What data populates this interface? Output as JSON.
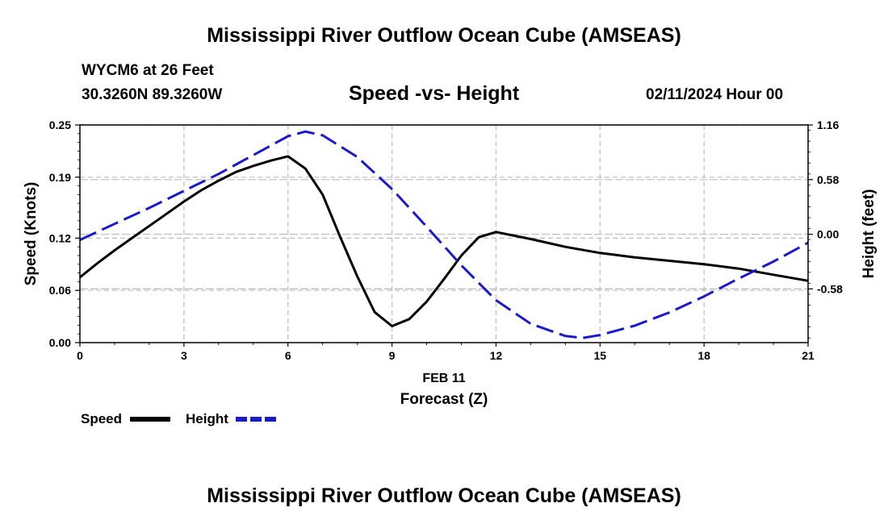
{
  "header": {
    "title": "Mississippi River Outflow Ocean Cube (AMSEAS)",
    "station": "WYCM6 at 26 Feet",
    "coords": "30.3260N  89.3260W",
    "datetime": "02/11/2024 Hour 00"
  },
  "footer": {
    "title": "Mississippi River Outflow Ocean Cube (AMSEAS)"
  },
  "colors": {
    "speed": "#000000",
    "height": "#1a1acc",
    "grid": "#bdbdbd"
  },
  "chart_data": {
    "type": "line",
    "title": "Speed -vs- Height",
    "xlabel": "Forecast (Z)",
    "x_date_label": "FEB 11",
    "ylabel": "Speed (Knots)",
    "y2label": "Height (feet)",
    "xlim": [
      0,
      21
    ],
    "ylim": [
      0,
      0.25
    ],
    "y2lim": [
      -1.15,
      1.16
    ],
    "xticks": [
      0,
      3,
      6,
      9,
      12,
      15,
      18,
      21
    ],
    "yticks": [
      0.0,
      0.06,
      0.12,
      0.19,
      0.25
    ],
    "ytick_labels": [
      "0.00",
      "0.06",
      "0.12",
      "0.19",
      "0.25"
    ],
    "y2ticks": [
      -0.58,
      0.0,
      0.58,
      1.16
    ],
    "y2tick_labels": [
      "-0.58",
      "0.00",
      "0.58",
      "1.16"
    ],
    "grid": true,
    "legend": "bottom-left",
    "series": [
      {
        "name": "Speed",
        "axis": "left",
        "style": "solid",
        "x": [
          0,
          0.5,
          1,
          1.5,
          2,
          2.5,
          3,
          3.5,
          4,
          4.5,
          5,
          5.5,
          6,
          6.5,
          7,
          7.5,
          8,
          8.5,
          9,
          9.5,
          10,
          10.5,
          11,
          11.5,
          12,
          13,
          14,
          15,
          16,
          17,
          18,
          19,
          20,
          21
        ],
        "values": [
          0.075,
          0.091,
          0.106,
          0.12,
          0.134,
          0.148,
          0.162,
          0.175,
          0.186,
          0.196,
          0.203,
          0.209,
          0.214,
          0.2,
          0.17,
          0.122,
          0.076,
          0.035,
          0.019,
          0.027,
          0.047,
          0.073,
          0.1,
          0.121,
          0.127,
          0.119,
          0.11,
          0.103,
          0.098,
          0.094,
          0.09,
          0.085,
          0.078,
          0.071
        ]
      },
      {
        "name": "Height",
        "axis": "right",
        "style": "dashed",
        "x": [
          0,
          1,
          2,
          3,
          4,
          5,
          6,
          6.5,
          7,
          8,
          9,
          10,
          11,
          12,
          13,
          14,
          14.5,
          15,
          16,
          17,
          18,
          19,
          20,
          21
        ],
        "values": [
          -0.06,
          0.11,
          0.28,
          0.46,
          0.64,
          0.84,
          1.04,
          1.09,
          1.05,
          0.82,
          0.48,
          0.08,
          -0.33,
          -0.7,
          -0.95,
          -1.08,
          -1.1,
          -1.07,
          -0.97,
          -0.83,
          -0.66,
          -0.47,
          -0.29,
          -0.09
        ]
      }
    ]
  }
}
